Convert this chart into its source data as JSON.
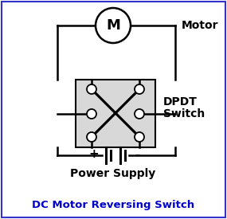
{
  "bg_color": "#ffffff",
  "border_color": "#3333cc",
  "line_color": "#000000",
  "switch_box_color": "#d8d8d8",
  "title_text": "DC Motor Reversing Switch",
  "title_color": "#0000cc",
  "motor_label": "Motor",
  "switch_label_line1": "DPDT",
  "switch_label_line2": "Switch",
  "supply_label": "Power Supply",
  "motor_symbol": "M",
  "plus_label": "+",
  "minus_label": "-",
  "fig_width": 2.85,
  "fig_height": 2.75,
  "dpi": 100
}
